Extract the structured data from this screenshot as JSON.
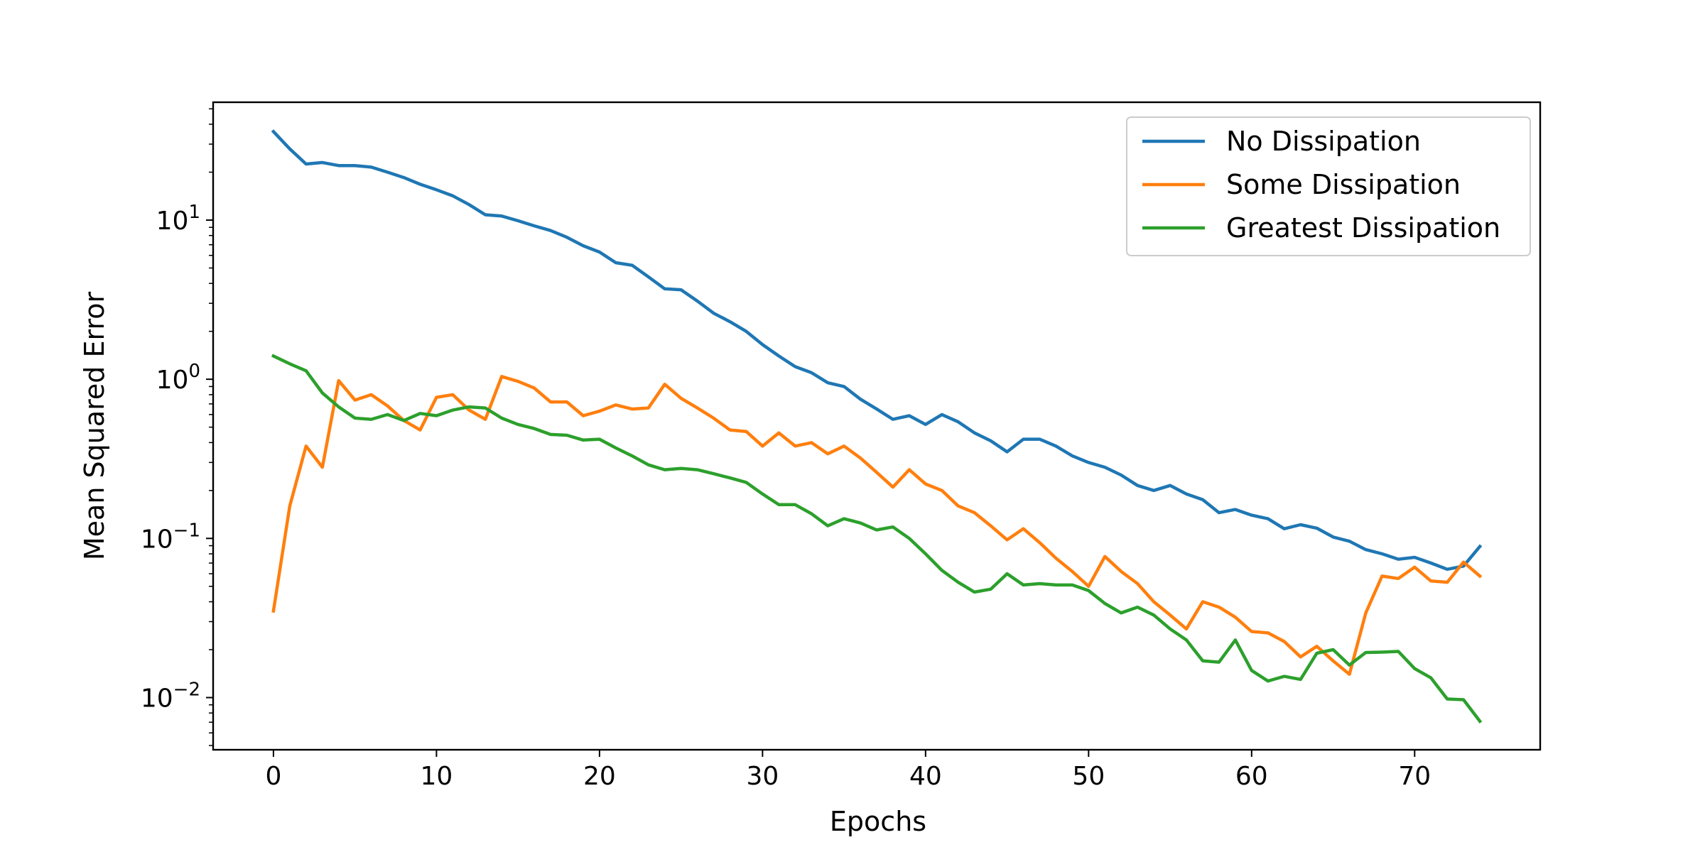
{
  "chart_data": {
    "type": "line",
    "title": "",
    "xlabel": "Epochs",
    "ylabel": "Mean Squared Error",
    "yscale": "log",
    "xlim": [
      -3.7,
      77.7
    ],
    "ylim": [
      0.0047,
      55
    ],
    "xticks": [
      0,
      10,
      20,
      30,
      40,
      50,
      60,
      70
    ],
    "xtick_labels": [
      "0",
      "10",
      "20",
      "30",
      "40",
      "50",
      "60",
      "70"
    ],
    "yticks": [
      0.01,
      0.1,
      1,
      10
    ],
    "ytick_labels": [
      {
        "base": "10",
        "exp": "−2"
      },
      {
        "base": "10",
        "exp": "−1"
      },
      {
        "base": "10",
        "exp": "0"
      },
      {
        "base": "10",
        "exp": "1"
      }
    ],
    "grid": false,
    "legend_position": "top-right",
    "series": [
      {
        "name": "No Dissipation",
        "color": "#1f77b4",
        "values": [
          36,
          28,
          22.5,
          23,
          22,
          22,
          21.5,
          20,
          18.5,
          16.8,
          15.5,
          14.2,
          12.5,
          10.8,
          10.6,
          9.9,
          9.2,
          8.6,
          7.8,
          6.9,
          6.3,
          5.4,
          5.2,
          4.4,
          3.7,
          3.65,
          3.1,
          2.6,
          2.3,
          2.0,
          1.65,
          1.4,
          1.2,
          1.1,
          0.95,
          0.9,
          0.75,
          0.65,
          0.56,
          0.59,
          0.52,
          0.6,
          0.54,
          0.46,
          0.41,
          0.35,
          0.42,
          0.42,
          0.38,
          0.33,
          0.3,
          0.28,
          0.25,
          0.215,
          0.2,
          0.215,
          0.19,
          0.175,
          0.145,
          0.152,
          0.14,
          0.133,
          0.115,
          0.122,
          0.116,
          0.102,
          0.096,
          0.085,
          0.08,
          0.074,
          0.076,
          0.07,
          0.064,
          0.067,
          0.089
        ]
      },
      {
        "name": "Some Dissipation",
        "color": "#ff7f0e",
        "values": [
          0.035,
          0.16,
          0.38,
          0.28,
          0.98,
          0.74,
          0.8,
          0.68,
          0.55,
          0.48,
          0.77,
          0.8,
          0.64,
          0.56,
          1.04,
          0.97,
          0.88,
          0.72,
          0.72,
          0.59,
          0.63,
          0.69,
          0.65,
          0.66,
          0.93,
          0.76,
          0.66,
          0.57,
          0.48,
          0.47,
          0.38,
          0.46,
          0.38,
          0.4,
          0.34,
          0.38,
          0.32,
          0.26,
          0.21,
          0.27,
          0.22,
          0.2,
          0.16,
          0.145,
          0.12,
          0.098,
          0.115,
          0.094,
          0.075,
          0.062,
          0.05,
          0.077,
          0.062,
          0.052,
          0.04,
          0.033,
          0.027,
          0.04,
          0.037,
          0.032,
          0.026,
          0.0255,
          0.0225,
          0.018,
          0.021,
          0.017,
          0.014,
          0.034,
          0.058,
          0.056,
          0.066,
          0.054,
          0.053,
          0.071,
          0.058
        ]
      },
      {
        "name": "Greatest Dissipation",
        "color": "#2ca02c",
        "values": [
          1.4,
          1.25,
          1.13,
          0.82,
          0.67,
          0.57,
          0.56,
          0.6,
          0.55,
          0.61,
          0.59,
          0.64,
          0.67,
          0.66,
          0.57,
          0.52,
          0.49,
          0.45,
          0.445,
          0.415,
          0.42,
          0.37,
          0.33,
          0.29,
          0.27,
          0.275,
          0.27,
          0.255,
          0.24,
          0.225,
          0.19,
          0.163,
          0.163,
          0.143,
          0.12,
          0.133,
          0.125,
          0.113,
          0.118,
          0.1,
          0.08,
          0.063,
          0.053,
          0.046,
          0.048,
          0.06,
          0.051,
          0.052,
          0.051,
          0.051,
          0.047,
          0.039,
          0.034,
          0.037,
          0.033,
          0.027,
          0.023,
          0.017,
          0.0167,
          0.023,
          0.0148,
          0.0127,
          0.0136,
          0.013,
          0.019,
          0.02,
          0.016,
          0.0192,
          0.0193,
          0.0195,
          0.0152,
          0.0133,
          0.0098,
          0.0097,
          0.0071
        ]
      }
    ]
  }
}
